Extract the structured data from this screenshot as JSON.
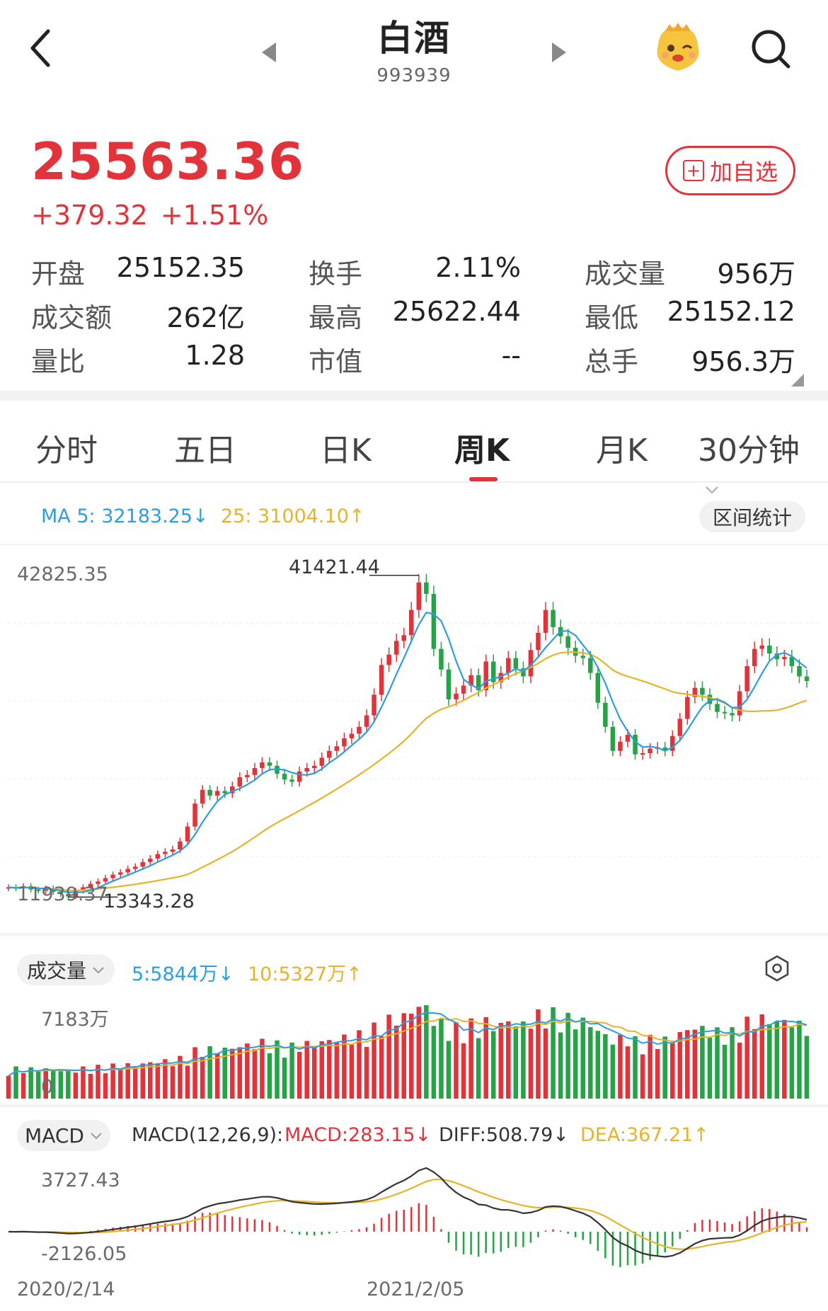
{
  "header": {
    "title": "白酒",
    "code": "993939"
  },
  "quote": {
    "price": "25563.36",
    "change": "+379.32",
    "change_pct": "+1.51%",
    "add_watchlist_label": "加自选"
  },
  "stats": [
    {
      "label": "开盘",
      "value": "25152.35",
      "color": "green"
    },
    {
      "label": "换手",
      "value": "2.11%",
      "color": "black"
    },
    {
      "label": "成交量",
      "value": "956万",
      "color": "black"
    },
    {
      "label": "成交额",
      "value": "262亿",
      "color": "black"
    },
    {
      "label": "最高",
      "value": "25622.44",
      "color": "red"
    },
    {
      "label": "最低",
      "value": "25152.12",
      "color": "green"
    },
    {
      "label": "量比",
      "value": "1.28",
      "color": "black"
    },
    {
      "label": "市值",
      "value": "--",
      "color": "black"
    },
    {
      "label": "总手",
      "value": "956.3万",
      "color": "black"
    }
  ],
  "tabs": [
    "分时",
    "五日",
    "日K",
    "周K",
    "月K",
    "30分钟"
  ],
  "active_tab": "周K",
  "price_panel": {
    "ma5_label": "MA 5: 32183.25↓",
    "ma25_label": "25: 31004.10↑",
    "range_stats_label": "区间统计",
    "top_value": "42825.35",
    "high_marker": "41421.44",
    "low_left_label": "11939.37",
    "low_marker": "13343.28"
  },
  "volume_panel": {
    "selector_label": "成交量",
    "ma5_label": "5:5844万↓",
    "ma10_label": "10:5327万↑",
    "top_value": "7183万",
    "bottom_value": "0"
  },
  "macd_panel": {
    "selector_label": "MACD",
    "params_label": "MACD(12,26,9):",
    "macd_label": "MACD:283.15↓",
    "diff_label": "DIFF:508.79↓",
    "dea_label": "DEA:367.21↑",
    "top_value": "3727.43",
    "bottom_value": "-2126.05"
  },
  "x_axis": {
    "start_date": "2020/2/14",
    "mid_date": "2021/2/05"
  },
  "colors": {
    "up": "#e2323a",
    "down": "#27a347",
    "ma5": "#2c9ede",
    "ma25": "#e6b32a",
    "diff": "#333333"
  },
  "chart_data": [
    {
      "type": "candlestick",
      "title": "",
      "ylim": [
        11939.37,
        42825.35
      ],
      "x_start": "2020/2/14",
      "note_high": 41421.44,
      "note_low": 13343.28,
      "series": [
        {
          "name": "MA 5",
          "last": 32183.25
        },
        {
          "name": "25",
          "last": 31004.1
        }
      ],
      "close": [
        14200,
        14100,
        14300,
        14000,
        13900,
        14100,
        13800,
        13600,
        13400,
        13900,
        14200,
        14500,
        14700,
        15000,
        15300,
        15500,
        15800,
        16000,
        16400,
        16700,
        17100,
        17300,
        17500,
        18200,
        19500,
        21500,
        22700,
        22200,
        22600,
        22400,
        23000,
        23800,
        24000,
        24600,
        25100,
        24800,
        24100,
        23600,
        23400,
        24300,
        24600,
        24800,
        25500,
        26100,
        26500,
        27200,
        27600,
        28200,
        29200,
        31000,
        33600,
        34500,
        35700,
        36200,
        38400,
        40800,
        39800,
        35000,
        33200,
        30600,
        31100,
        31800,
        32700,
        31400,
        33900,
        32100,
        32900,
        34200,
        33300,
        32600,
        34900,
        36400,
        38400,
        36900,
        36100,
        35100,
        34400,
        34200,
        32900,
        30300,
        28200,
        26100,
        26900,
        27500,
        25800,
        25900,
        26300,
        26400,
        26100,
        27400,
        28900,
        30800,
        31600,
        31000,
        30200,
        29500,
        29400,
        29200,
        31300,
        33500,
        35000,
        35300,
        34600,
        34100,
        34300,
        33500,
        32600,
        32200
      ]
    },
    {
      "type": "bar",
      "title": "成交量",
      "ylim": [
        0,
        7183
      ],
      "unit": "万",
      "series": [
        {
          "name": "5",
          "last": 5844
        },
        {
          "name": "10",
          "last": 5327
        }
      ]
    },
    {
      "type": "bar",
      "title": "MACD(12,26,9)",
      "ylim": [
        -2126.05,
        3727.43
      ],
      "series": [
        {
          "name": "MACD",
          "last": 283.15
        },
        {
          "name": "DIFF",
          "last": 508.79
        },
        {
          "name": "DEA",
          "last": 367.21
        }
      ]
    }
  ]
}
